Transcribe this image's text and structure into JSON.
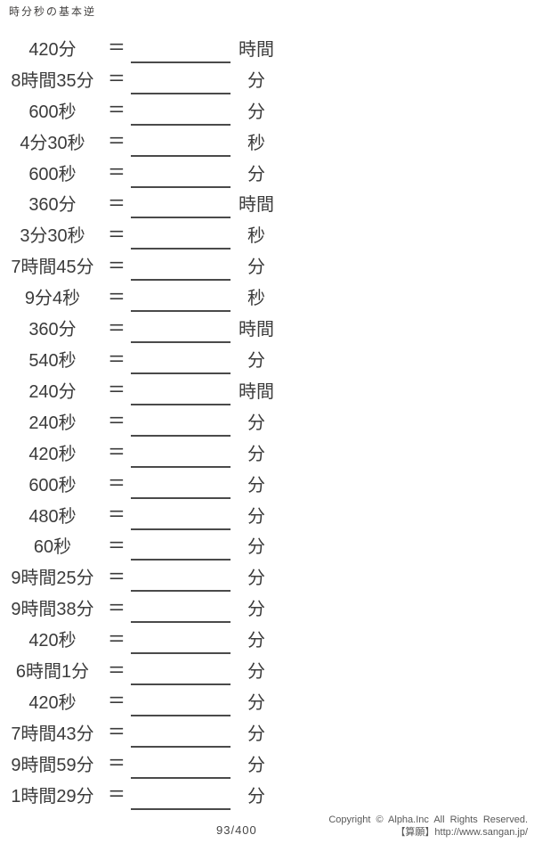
{
  "title": "時分秒の基本逆",
  "equals": "=",
  "rows": [
    {
      "problem": "420分",
      "unit": "時間"
    },
    {
      "problem": "8時間35分",
      "unit": "分"
    },
    {
      "problem": "600秒",
      "unit": "分"
    },
    {
      "problem": "4分30秒",
      "unit": "秒"
    },
    {
      "problem": "600秒",
      "unit": "分"
    },
    {
      "problem": "360分",
      "unit": "時間"
    },
    {
      "problem": "3分30秒",
      "unit": "秒"
    },
    {
      "problem": "7時間45分",
      "unit": "分"
    },
    {
      "problem": "9分4秒",
      "unit": "秒"
    },
    {
      "problem": "360分",
      "unit": "時間"
    },
    {
      "problem": "540秒",
      "unit": "分"
    },
    {
      "problem": "240分",
      "unit": "時間"
    },
    {
      "problem": "240秒",
      "unit": "分"
    },
    {
      "problem": "420秒",
      "unit": "分"
    },
    {
      "problem": "600秒",
      "unit": "分"
    },
    {
      "problem": "480秒",
      "unit": "分"
    },
    {
      "problem": "60秒",
      "unit": "分"
    },
    {
      "problem": "9時間25分",
      "unit": "分"
    },
    {
      "problem": "9時間38分",
      "unit": "分"
    },
    {
      "problem": "420秒",
      "unit": "分"
    },
    {
      "problem": "6時間1分",
      "unit": "分"
    },
    {
      "problem": "420秒",
      "unit": "分"
    },
    {
      "problem": "7時間43分",
      "unit": "分"
    },
    {
      "problem": "9時間59分",
      "unit": "分"
    },
    {
      "problem": "1時間29分",
      "unit": "分"
    }
  ],
  "footer": {
    "page_number": "93/400",
    "copyright_line1": "Copyright © Alpha.Inc All Rights Reserved.",
    "copyright_line2": "【算願】http://www.sangan.jp/"
  },
  "colors": {
    "text": "#3b3b3b",
    "blank_line": "#4a4a4a",
    "footer_text": "#595959",
    "background": "#ffffff"
  }
}
